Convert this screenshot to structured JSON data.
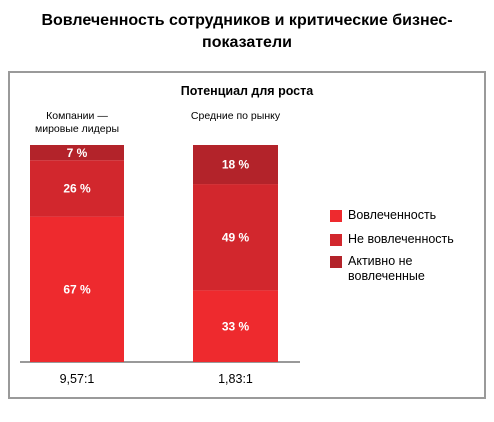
{
  "chart_data": {
    "type": "stacked_bar",
    "title": "Вовлеченность сотрудников и критические бизнес-показатели",
    "subtitle": "Потенциал для роста",
    "categories": [
      "Компании — мировые лидеры",
      "Средние по рынку"
    ],
    "series": [
      {
        "name": "Вовлеченность",
        "color": "#ee2a2e",
        "values": [
          67,
          33
        ],
        "value_labels": [
          "67 %",
          "33 %"
        ]
      },
      {
        "name": "Не вовлеченность",
        "color": "#d2272d",
        "values": [
          26,
          49
        ],
        "value_labels": [
          "26 %",
          "49 %"
        ]
      },
      {
        "name": "Активно не вовлеченные",
        "color": "#b3232a",
        "values": [
          7,
          18
        ],
        "value_labels": [
          "7 %",
          "18 %"
        ]
      }
    ],
    "annotations": [
      "9,57:1",
      "1,83:1"
    ],
    "ylim": [
      0,
      100
    ],
    "legend": "right"
  }
}
